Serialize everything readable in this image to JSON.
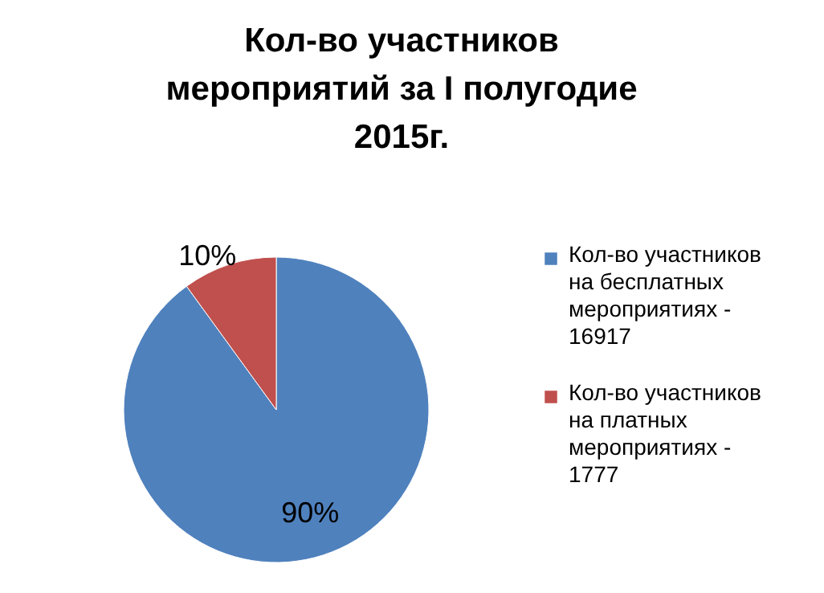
{
  "chart_data": {
    "type": "pie",
    "title": "Кол-во участников мероприятий за I полугодие 2015г.",
    "categories": [
      "Кол-во участников на бесплатных мероприятиях - 16917",
      "Кол-во участников на платных мероприятиях - 1777"
    ],
    "values": [
      90,
      10
    ],
    "colors": [
      "#4f81bd",
      "#c0504d"
    ],
    "value_labels": [
      "90%",
      "10%"
    ],
    "legend": "right"
  }
}
